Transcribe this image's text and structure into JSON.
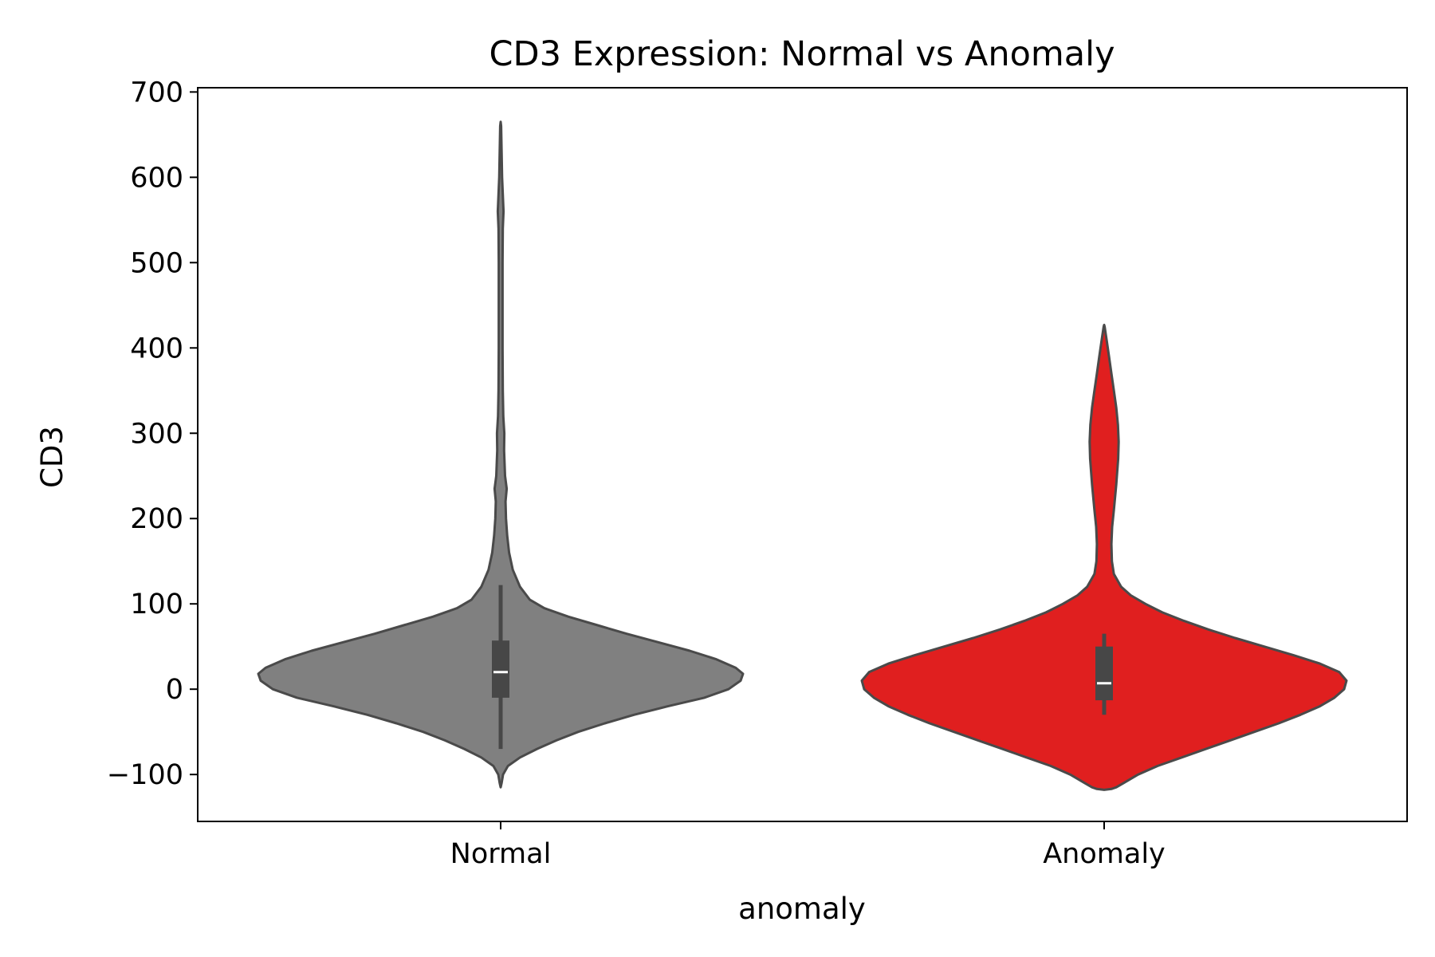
{
  "chart_data": {
    "type": "violin",
    "title": "CD3 Expression: Normal vs Anomaly",
    "xlabel": "anomaly",
    "ylabel": "CD3",
    "ylim": [
      -155,
      705
    ],
    "yticks": [
      700,
      600,
      500,
      400,
      300,
      200,
      100,
      0,
      -100
    ],
    "ytick_labels": [
      "700",
      "600",
      "500",
      "400",
      "300",
      "200",
      "100",
      "0",
      "−100"
    ],
    "grid": false,
    "categories": [
      "Normal",
      "Anomaly"
    ],
    "series": [
      {
        "category": "Normal",
        "color": "#808080",
        "density": [
          [
            -115,
            0
          ],
          [
            -110,
            0.004
          ],
          [
            -100,
            0.01
          ],
          [
            -90,
            0.03
          ],
          [
            -80,
            0.08
          ],
          [
            -70,
            0.15
          ],
          [
            -60,
            0.23
          ],
          [
            -50,
            0.32
          ],
          [
            -40,
            0.43
          ],
          [
            -30,
            0.55
          ],
          [
            -20,
            0.69
          ],
          [
            -10,
            0.84
          ],
          [
            0,
            0.94
          ],
          [
            10,
            0.99
          ],
          [
            18,
            1.0
          ],
          [
            25,
            0.97
          ],
          [
            35,
            0.89
          ],
          [
            45,
            0.78
          ],
          [
            55,
            0.65
          ],
          [
            65,
            0.52
          ],
          [
            75,
            0.4
          ],
          [
            85,
            0.28
          ],
          [
            95,
            0.18
          ],
          [
            105,
            0.12
          ],
          [
            120,
            0.08
          ],
          [
            140,
            0.05
          ],
          [
            160,
            0.035
          ],
          [
            180,
            0.027
          ],
          [
            200,
            0.022
          ],
          [
            220,
            0.02
          ],
          [
            235,
            0.025
          ],
          [
            250,
            0.018
          ],
          [
            280,
            0.014
          ],
          [
            300,
            0.015
          ],
          [
            320,
            0.011
          ],
          [
            350,
            0.009
          ],
          [
            400,
            0.008
          ],
          [
            450,
            0.008
          ],
          [
            500,
            0.008
          ],
          [
            540,
            0.009
          ],
          [
            560,
            0.012
          ],
          [
            580,
            0.009
          ],
          [
            600,
            0.006
          ],
          [
            630,
            0.004
          ],
          [
            660,
            0.002
          ],
          [
            665,
            0
          ]
        ],
        "q1": -10,
        "median": 20,
        "q3": 57,
        "whisker_low": -70,
        "whisker_high": 122
      },
      {
        "category": "Anomaly",
        "color": "#e01f1f",
        "density": [
          [
            -118,
            0
          ],
          [
            -117,
            0.03
          ],
          [
            -115,
            0.05
          ],
          [
            -110,
            0.08
          ],
          [
            -100,
            0.14
          ],
          [
            -90,
            0.22
          ],
          [
            -80,
            0.32
          ],
          [
            -70,
            0.42
          ],
          [
            -60,
            0.52
          ],
          [
            -50,
            0.62
          ],
          [
            -40,
            0.72
          ],
          [
            -30,
            0.81
          ],
          [
            -20,
            0.89
          ],
          [
            -10,
            0.95
          ],
          [
            0,
            0.99
          ],
          [
            10,
            1.0
          ],
          [
            20,
            0.97
          ],
          [
            30,
            0.89
          ],
          [
            40,
            0.78
          ],
          [
            50,
            0.66
          ],
          [
            60,
            0.54
          ],
          [
            70,
            0.43
          ],
          [
            80,
            0.33
          ],
          [
            90,
            0.24
          ],
          [
            100,
            0.17
          ],
          [
            110,
            0.11
          ],
          [
            120,
            0.07
          ],
          [
            135,
            0.04
          ],
          [
            150,
            0.032
          ],
          [
            170,
            0.03
          ],
          [
            190,
            0.033
          ],
          [
            210,
            0.04
          ],
          [
            240,
            0.05
          ],
          [
            270,
            0.058
          ],
          [
            290,
            0.06
          ],
          [
            310,
            0.057
          ],
          [
            330,
            0.05
          ],
          [
            350,
            0.04
          ],
          [
            370,
            0.03
          ],
          [
            390,
            0.02
          ],
          [
            410,
            0.01
          ],
          [
            425,
            0.002
          ],
          [
            427,
            0
          ]
        ],
        "q1": -13,
        "median": 7,
        "q3": 50,
        "whisker_low": -30,
        "whisker_high": 65
      }
    ]
  }
}
